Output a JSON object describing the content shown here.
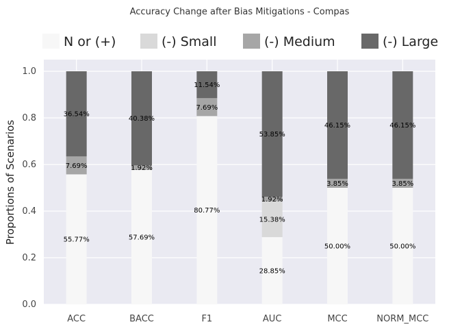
{
  "chart_data": {
    "type": "bar",
    "stacked": true,
    "title": "Accuracy Change after Bias Mitigations - Compas",
    "xlabel": "",
    "ylabel": "Proportions of Scenarios",
    "ylim": [
      0,
      1.05
    ],
    "yticks": [
      "0.0",
      "0.2",
      "0.4",
      "0.6",
      "0.8",
      "1.0"
    ],
    "grid": true,
    "legend_position": "top",
    "categories": [
      "ACC",
      "BACC",
      "F1",
      "AUC",
      "MCC",
      "NORM_MCC"
    ],
    "series": [
      {
        "name": "N or (+)",
        "color": "#f7f7f7",
        "values": [
          0.5577,
          0.5769,
          0.8077,
          0.2885,
          0.5,
          0.5
        ],
        "labels": [
          "55.77%",
          "57.69%",
          "80.77%",
          "28.85%",
          "50.00%",
          "50.00%"
        ]
      },
      {
        "name": "(-) Small",
        "color": "#d9d9d9",
        "values": [
          0,
          0,
          0,
          0.1538,
          0,
          0
        ],
        "labels": [
          "",
          "",
          "",
          "15.38%",
          "",
          ""
        ]
      },
      {
        "name": "(-) Medium",
        "color": "#a6a6a6",
        "values": [
          0.0769,
          0.0192,
          0.0769,
          0.0192,
          0.0385,
          0.0385
        ],
        "labels": [
          "7.69%",
          "1.92%",
          "7.69%",
          "1.92%",
          "3.85%",
          "3.85%"
        ]
      },
      {
        "name": "(-) Large",
        "color": "#686868",
        "values": [
          0.3654,
          0.4038,
          0.1154,
          0.5385,
          0.4615,
          0.4615
        ],
        "labels": [
          "36.54%",
          "40.38%",
          "11.54%",
          "53.85%",
          "46.15%",
          "46.15%"
        ]
      }
    ]
  }
}
